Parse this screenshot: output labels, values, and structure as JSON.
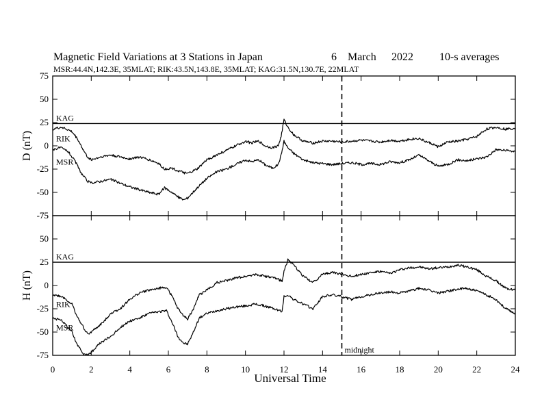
{
  "title": {
    "main": "Magnetic Field Variations at 3 Stations in Japan",
    "day": "6",
    "month": "March",
    "year": "2022",
    "averaging": "10-s averages"
  },
  "subtitle": "MSR:44.4N,142.3E, 35MLAT;  RIK:43.5N,143.8E, 35MLAT;  KAG:31.5N,130.7E, 22MLAT",
  "chart_data": {
    "type": "line",
    "xlabel": "Universal Time",
    "xlim": [
      0,
      24
    ],
    "xticks": [
      "0",
      "2",
      "4",
      "6",
      "8",
      "10",
      "12",
      "14",
      "16",
      "18",
      "20",
      "22",
      "24"
    ],
    "grid": false,
    "annotations": [
      {
        "text": "midnight",
        "x": 15,
        "style": "dashed vertical line"
      }
    ],
    "panels": [
      {
        "ylabel": "D (nT)",
        "ylim": [
          -75,
          75
        ],
        "yticks": [
          "75",
          "50",
          "25",
          "0",
          "-25",
          "-50",
          "-75"
        ],
        "series": [
          {
            "name": "KAG",
            "style": "flat reference line",
            "x": [
              0,
              24
            ],
            "values": [
              24,
              24
            ]
          },
          {
            "name": "RIK",
            "x": [
              0,
              0.5,
              1,
              1.3,
              1.6,
              1.8,
              2,
              2.5,
              3,
              3.5,
              4,
              4.5,
              5,
              5.5,
              5.8,
              6.2,
              6.5,
              7,
              7.5,
              8,
              8.5,
              9,
              9.5,
              10,
              10.3,
              10.7,
              11,
              11.4,
              11.7,
              11.85,
              12,
              12.2,
              12.5,
              13,
              13.5,
              14,
              14.5,
              15,
              15.5,
              16,
              16.5,
              17,
              17.5,
              18,
              18.5,
              19,
              19.3,
              19.7,
              20,
              20.5,
              21,
              21.5,
              22,
              22.5,
              23,
              23.5,
              24
            ],
            "values": [
              18,
              20,
              15,
              7,
              -5,
              -12,
              -15,
              -12,
              -10,
              -12,
              -14,
              -12,
              -15,
              -19,
              -25,
              -24,
              -27,
              -30,
              -25,
              -15,
              -10,
              -5,
              0,
              5,
              3,
              5,
              0,
              -2,
              0,
              10,
              28,
              20,
              12,
              5,
              3,
              5,
              5,
              4,
              5,
              6,
              5,
              4,
              6,
              5,
              7,
              8,
              5,
              2,
              -1,
              4,
              5,
              7,
              10,
              18,
              20,
              18,
              19
            ]
          },
          {
            "name": "MSR",
            "x": [
              0,
              0.4,
              0.8,
              1.2,
              1.5,
              1.8,
              2,
              2.5,
              3,
              3.5,
              4,
              4.5,
              5,
              5.5,
              5.8,
              6.2,
              6.5,
              6.8,
              7,
              7.5,
              8,
              8.5,
              9,
              9.5,
              10,
              10.3,
              10.7,
              11,
              11.4,
              11.7,
              11.85,
              12,
              12.2,
              12.5,
              13,
              13.5,
              14,
              14.5,
              15,
              15.5,
              16,
              16.5,
              17,
              17.5,
              18,
              18.5,
              19,
              19.5,
              20,
              20.5,
              21,
              21.5,
              22,
              22.5,
              23,
              23.5,
              24
            ],
            "values": [
              -4,
              -2,
              -6,
              -18,
              -30,
              -38,
              -40,
              -38,
              -36,
              -40,
              -44,
              -47,
              -50,
              -52,
              -45,
              -50,
              -55,
              -58,
              -56,
              -45,
              -35,
              -28,
              -25,
              -20,
              -15,
              -17,
              -15,
              -20,
              -24,
              -20,
              -10,
              5,
              -2,
              -8,
              -15,
              -18,
              -19,
              -20,
              -19,
              -18,
              -20,
              -19,
              -20,
              -17,
              -18,
              -15,
              -10,
              -16,
              -22,
              -20,
              -15,
              -16,
              -14,
              -12,
              -4,
              -5,
              -6
            ]
          }
        ]
      },
      {
        "ylabel": "H (nT)",
        "ylim": [
          -75,
          75
        ],
        "yticks": [
          "75",
          "50",
          "25",
          "0",
          "-25",
          "-50",
          "-75"
        ],
        "series": [
          {
            "name": "KAG",
            "style": "flat reference line",
            "x": [
              0,
              24
            ],
            "values": [
              25,
              25
            ]
          },
          {
            "name": "RIK",
            "x": [
              0,
              0.5,
              1,
              1.3,
              1.6,
              1.8,
              2,
              2.3,
              2.6,
              3,
              3.5,
              4,
              4.5,
              5,
              5.5,
              5.9,
              6.2,
              6.5,
              6.8,
              7,
              7.3,
              7.6,
              8,
              8.5,
              9,
              9.5,
              10,
              10.5,
              11,
              11.5,
              11.9,
              12,
              12.2,
              12.5,
              13,
              13.5,
              14,
              14.5,
              15,
              15.5,
              16,
              16.5,
              17,
              17.5,
              18,
              18.5,
              19,
              19.5,
              20,
              20.5,
              21,
              21.5,
              22,
              22.5,
              23,
              23.5,
              24
            ],
            "values": [
              -10,
              -12,
              -20,
              -35,
              -45,
              -52,
              -50,
              -45,
              -40,
              -30,
              -25,
              -15,
              -8,
              -5,
              -3,
              -2,
              -12,
              -25,
              -33,
              -36,
              -25,
              -10,
              -5,
              3,
              5,
              8,
              10,
              12,
              10,
              8,
              5,
              15,
              28,
              22,
              10,
              3,
              12,
              14,
              12,
              10,
              12,
              14,
              15,
              13,
              17,
              19,
              20,
              18,
              19,
              20,
              22,
              20,
              17,
              10,
              5,
              -3,
              -5
            ]
          },
          {
            "name": "MSR",
            "x": [
              0,
              0.5,
              1,
              1.3,
              1.6,
              1.8,
              2,
              2.3,
              2.6,
              3,
              3.5,
              4,
              4.5,
              5,
              5.5,
              5.9,
              6.2,
              6.5,
              6.8,
              7,
              7.3,
              7.6,
              8,
              8.5,
              9,
              9.5,
              10,
              10.5,
              11,
              11.5,
              11.9,
              12,
              12.2,
              12.5,
              13,
              13.5,
              14,
              14.5,
              15,
              15.5,
              16,
              16.5,
              17,
              17.5,
              18,
              18.5,
              19,
              19.5,
              20,
              20.5,
              21,
              21.5,
              22,
              22.5,
              23,
              23.5,
              24
            ],
            "values": [
              -35,
              -38,
              -50,
              -65,
              -73,
              -75,
              -72,
              -65,
              -60,
              -55,
              -45,
              -38,
              -35,
              -30,
              -28,
              -27,
              -40,
              -55,
              -62,
              -63,
              -50,
              -35,
              -30,
              -27,
              -25,
              -23,
              -22,
              -20,
              -22,
              -25,
              -28,
              -12,
              -10,
              -15,
              -20,
              -25,
              -12,
              -10,
              -12,
              -15,
              -12,
              -10,
              -8,
              -7,
              -8,
              -6,
              -3,
              -5,
              -8,
              -6,
              -4,
              -3,
              -6,
              -10,
              -15,
              -25,
              -30
            ]
          }
        ]
      }
    ]
  }
}
